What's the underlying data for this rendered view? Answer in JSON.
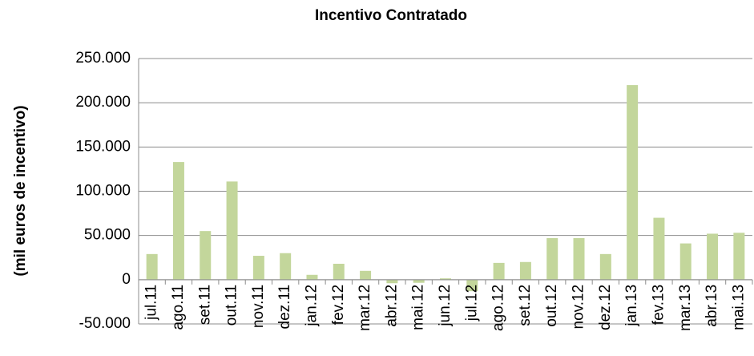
{
  "chart_data": {
    "type": "bar",
    "title": "Incentivo Contratado",
    "y_label": "(mil euros de incentivo)",
    "categories": [
      "jul.11",
      "ago.11",
      "set.11",
      "out.11",
      "nov.11",
      "dez.11",
      "jan.12",
      "fev.12",
      "mar.12",
      "abr.12",
      "mai.12",
      "jun.12",
      "jul.12",
      "ago.12",
      "set.12",
      "out.12",
      "nov.12",
      "dez.12",
      "jan.13",
      "fev.13",
      "mar.13",
      "abr.13",
      "mai.13"
    ],
    "values": [
      29000,
      133000,
      55000,
      111000,
      27000,
      30000,
      5500,
      18000,
      10000,
      -4000,
      -3500,
      1500,
      -13000,
      19000,
      20000,
      47000,
      47000,
      29000,
      220000,
      70000,
      41000,
      52000,
      53000
    ],
    "color": "#c3d69b",
    "ylim": [
      -50000,
      250000
    ],
    "yticks": [
      {
        "value": -50000,
        "label": "-50.000"
      },
      0,
      {
        "value": 50000,
        "label": "50.000"
      },
      {
        "value": 100000,
        "label": "100.000"
      },
      {
        "value": 150000,
        "label": "150.000"
      },
      {
        "value": 200000,
        "label": "200.000"
      },
      {
        "value": 250000,
        "label": "250.000"
      }
    ],
    "grid": true
  }
}
